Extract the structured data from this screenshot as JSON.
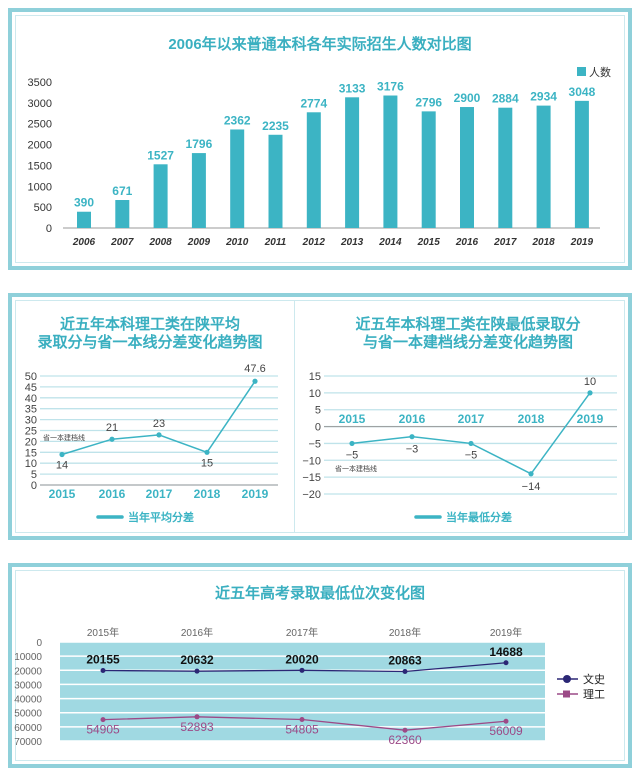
{
  "chart_data": [
    {
      "type": "bar",
      "title": "2006年以来普通本科各年实际招生人数对比图",
      "categories": [
        "2006",
        "2007",
        "2008",
        "2009",
        "2010",
        "2011",
        "2012",
        "2013",
        "2014",
        "2015",
        "2016",
        "2017",
        "2018",
        "2019"
      ],
      "series": [
        {
          "name": "人数",
          "values": [
            390,
            671,
            1527,
            1796,
            2362,
            2235,
            2774,
            3133,
            3176,
            2796,
            2900,
            2884,
            2934,
            3048
          ]
        }
      ],
      "ylim": [
        0,
        3500
      ],
      "yticks": [
        0,
        500,
        1000,
        1500,
        2000,
        2500,
        3000,
        3500
      ],
      "legend": "top-right",
      "color": "#3cb4c4"
    },
    {
      "type": "line",
      "title": [
        "近五年本科理工类在陕平均",
        "录取分与省一本线分差变化趋势图"
      ],
      "categories": [
        "2015",
        "2016",
        "2017",
        "2018",
        "2019"
      ],
      "series": [
        {
          "name": "当年平均分差",
          "values": [
            14,
            21,
            23,
            15,
            47.6
          ]
        }
      ],
      "data_labels": [
        "14",
        "21",
        "23",
        "15",
        "47.6"
      ],
      "annotation": "省一本建档线",
      "ylim": [
        0,
        50
      ],
      "yticks": [
        0,
        5,
        10,
        15,
        20,
        25,
        30,
        35,
        40,
        45,
        50
      ],
      "legend": "bottom",
      "color": "#3cb4c4"
    },
    {
      "type": "line",
      "title": [
        "近五年本科理工类在陕最低录取分",
        "与省一本建档线分差变化趋势图"
      ],
      "categories": [
        "2015",
        "2016",
        "2017",
        "2018",
        "2019"
      ],
      "series": [
        {
          "name": "当年最低分差",
          "values": [
            -5,
            -3,
            -5,
            -14,
            10
          ]
        }
      ],
      "data_labels": [
        "−5",
        "−3",
        "−5",
        "−14",
        "10"
      ],
      "annotation": "省一本建档线",
      "ylim": [
        -20,
        15
      ],
      "yticks": [
        -20,
        -15,
        -10,
        -5,
        0,
        5,
        10,
        15
      ],
      "ytick_labels": [
        "−20",
        "−15",
        "−10",
        "−5",
        "0",
        "5",
        "10",
        "15"
      ],
      "legend": "bottom",
      "color": "#3cb4c4"
    },
    {
      "type": "line",
      "title": "近五年高考录取最低位次变化图",
      "categories": [
        "2015年",
        "2016年",
        "2017年",
        "2018年",
        "2019年"
      ],
      "series": [
        {
          "name": "文史",
          "values": [
            20155,
            20632,
            20020,
            20863,
            14688
          ],
          "color": "#2b2775"
        },
        {
          "name": "理工",
          "values": [
            54905,
            52893,
            54805,
            62360,
            56009
          ],
          "color": "#9c4a87"
        }
      ],
      "plotted_positions_note": "",
      "ylim": [
        0,
        70000
      ],
      "y_reversed": true,
      "yticks": [
        0,
        10000,
        20000,
        30000,
        40000,
        50000,
        60000,
        70000
      ],
      "legend": "right",
      "background": "#a0d9e2"
    }
  ]
}
